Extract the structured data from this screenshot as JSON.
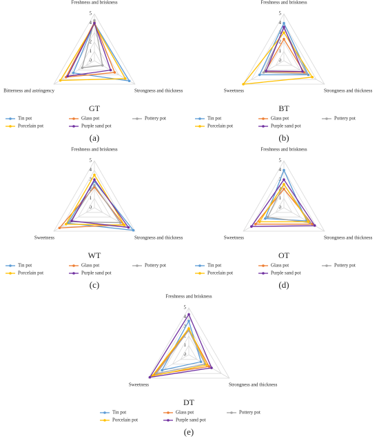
{
  "chart_data": [
    {
      "type": "radar",
      "title": "GT",
      "caption": "(a)",
      "axes": [
        "Freshness and briskness",
        "Strongness and thickness",
        "Bitterness and astringency"
      ],
      "rlim": [
        0,
        5
      ],
      "rticks": [
        0,
        1,
        2,
        3,
        4,
        5
      ],
      "series": [
        {
          "name": "Tin pot",
          "color": "#5b9bd5",
          "values": [
            4.0,
            4.3,
            2.6
          ]
        },
        {
          "name": "Glass pot",
          "color": "#ed7d31",
          "values": [
            4.1,
            2.5,
            3.5
          ]
        },
        {
          "name": "Pottery pot",
          "color": "#a5a5a5",
          "values": [
            4.3,
            1.0,
            1.5
          ]
        },
        {
          "name": "Porcelain pot",
          "color": "#ffc000",
          "values": [
            3.9,
            3.8,
            4.2
          ]
        },
        {
          "name": "Purple sand pot",
          "color": "#7030a0",
          "values": [
            4.0,
            2.0,
            3.3
          ]
        }
      ]
    },
    {
      "type": "radar",
      "title": "BT",
      "caption": "(b)",
      "axes": [
        "Freshness and briskness",
        "Strongness and thickness",
        "Sweetness"
      ],
      "rlim": [
        0,
        5
      ],
      "rticks": [
        0,
        1,
        2,
        3,
        4,
        5
      ],
      "series": [
        {
          "name": "Tin pot",
          "color": "#5b9bd5",
          "values": [
            4.0,
            3.0,
            3.0
          ]
        },
        {
          "name": "Glass pot",
          "color": "#ed7d31",
          "values": [
            2.3,
            2.5,
            2.3
          ]
        },
        {
          "name": "Pottery pot",
          "color": "#a5a5a5",
          "values": [
            3.5,
            2.8,
            2.5
          ]
        },
        {
          "name": "Porcelain pot",
          "color": "#ffc000",
          "values": [
            3.0,
            3.5,
            5.0
          ]
        },
        {
          "name": "Purple sand pot",
          "color": "#7030a0",
          "values": [
            3.6,
            2.3,
            2.2
          ]
        }
      ]
    },
    {
      "type": "radar",
      "title": "WT",
      "caption": "(c)",
      "axes": [
        "Freshness and briskness",
        "Strongness and thickness",
        "Sweetness"
      ],
      "rlim": [
        0,
        5
      ],
      "rticks": [
        0,
        1,
        2,
        3,
        4,
        5
      ],
      "series": [
        {
          "name": "Tin pot",
          "color": "#5b9bd5",
          "values": [
            2.8,
            4.8,
            3.3
          ]
        },
        {
          "name": "Glass pot",
          "color": "#ed7d31",
          "values": [
            2.2,
            3.6,
            4.3
          ]
        },
        {
          "name": "Pottery pot",
          "color": "#a5a5a5",
          "values": [
            2.4,
            3.2,
            3.0
          ]
        },
        {
          "name": "Porcelain pot",
          "color": "#ffc000",
          "values": [
            3.5,
            3.7,
            3.5
          ]
        },
        {
          "name": "Purple sand pot",
          "color": "#7030a0",
          "values": [
            3.0,
            4.2,
            2.8
          ]
        }
      ]
    },
    {
      "type": "radar",
      "title": "OT",
      "caption": "(d)",
      "axes": [
        "Freshness and briskness",
        "Strongness and thickness",
        "Sweetness"
      ],
      "rlim": [
        0,
        5
      ],
      "rticks": [
        0,
        1,
        2,
        3,
        4,
        5
      ],
      "series": [
        {
          "name": "Tin pot",
          "color": "#5b9bd5",
          "values": [
            4.0,
            2.8,
            2.3
          ]
        },
        {
          "name": "Glass pot",
          "color": "#ed7d31",
          "values": [
            2.0,
            3.5,
            3.5
          ]
        },
        {
          "name": "Pottery pot",
          "color": "#a5a5a5",
          "values": [
            2.5,
            3.2,
            2.0
          ]
        },
        {
          "name": "Porcelain pot",
          "color": "#ffc000",
          "values": [
            2.5,
            3.0,
            3.0
          ]
        },
        {
          "name": "Purple sand pot",
          "color": "#7030a0",
          "values": [
            3.0,
            3.8,
            4.0
          ]
        }
      ]
    },
    {
      "type": "radar",
      "title": "DT",
      "caption": "(e)",
      "axes": [
        "Freshness and briskness",
        "Strongness and thickness",
        "Sweetness"
      ],
      "rlim": [
        0,
        5
      ],
      "rticks": [
        0,
        1,
        2,
        3,
        4,
        5
      ],
      "series": [
        {
          "name": "Tin pot",
          "color": "#5b9bd5",
          "values": [
            3.6,
            1.5,
            3.3
          ]
        },
        {
          "name": "Glass pot",
          "color": "#ed7d31",
          "values": [
            2.7,
            2.5,
            4.3
          ]
        },
        {
          "name": "Pottery pot",
          "color": "#a5a5a5",
          "values": [
            2.6,
            2.0,
            4.0
          ]
        },
        {
          "name": "Porcelain pot",
          "color": "#ffc000",
          "values": [
            2.8,
            2.2,
            4.5
          ]
        },
        {
          "name": "Purple sand pot",
          "color": "#7030a0",
          "values": [
            4.3,
            2.8,
            4.8
          ]
        }
      ]
    }
  ]
}
